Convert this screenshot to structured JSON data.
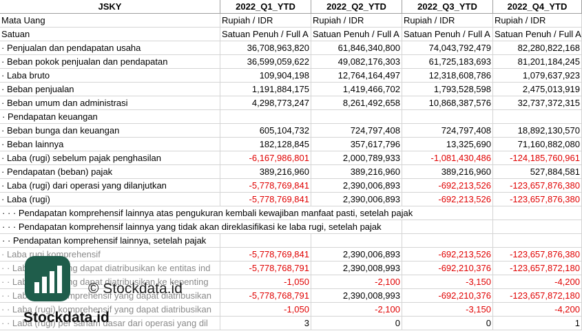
{
  "table": {
    "header": [
      "JSKY",
      "2022_Q1_YTD",
      "2022_Q2_YTD",
      "2022_Q3_YTD",
      "2022_Q4_YTD"
    ],
    "rows": [
      {
        "label": "Mata Uang",
        "values": [
          "Rupiah / IDR",
          "Rupiah / IDR",
          "Rupiah / IDR",
          "Rupiah / IDR"
        ]
      },
      {
        "label": "Satuan",
        "values": [
          "Satuan Penuh / Full A",
          "Satuan Penuh / Full A",
          "Satuan Penuh / Full A",
          "Satuan Penuh / Full A"
        ]
      },
      {
        "label": "· Penjualan dan pendapatan usaha",
        "values": [
          "36,708,963,820",
          "61,846,340,800",
          "74,043,792,479",
          "82,280,822,168"
        ]
      },
      {
        "label": "· Beban pokok penjualan dan pendapatan",
        "values": [
          "36,599,059,622",
          "49,082,176,303",
          "61,725,183,693",
          "81,201,184,245"
        ]
      },
      {
        "label": "· Laba bruto",
        "values": [
          "109,904,198",
          "12,764,164,497",
          "12,318,608,786",
          "1,079,637,923"
        ]
      },
      {
        "label": "· Beban penjualan",
        "values": [
          "1,191,884,175",
          "1,419,466,702",
          "1,793,528,598",
          "2,475,013,919"
        ]
      },
      {
        "label": "· Beban umum dan administrasi",
        "values": [
          "4,298,773,247",
          "8,261,492,658",
          "10,868,387,576",
          "32,737,372,315"
        ]
      },
      {
        "label": "· Pendapatan keuangan",
        "values": []
      },
      {
        "label": "· Beban bunga dan keuangan",
        "values": [
          "605,104,732",
          "724,797,408",
          "724,797,408",
          "18,892,130,570"
        ]
      },
      {
        "label": "· Beban lainnya",
        "values": [
          "182,128,845",
          "357,617,796",
          "13,325,690",
          "71,160,882,080"
        ]
      },
      {
        "label": "· Laba (rugi) sebelum pajak penghasilan",
        "values": [
          "-6,167,986,801",
          "2,000,789,933",
          "-1,081,430,486",
          "-124,185,760,961"
        ]
      },
      {
        "label": "· Pendapatan (beban) pajak",
        "values": [
          "389,216,960",
          "389,216,960",
          "389,216,960",
          "527,884,581"
        ]
      },
      {
        "label": "· Laba (rugi) dari operasi yang dilanjutkan",
        "values": [
          "-5,778,769,841",
          "2,390,006,893",
          "-692,213,526",
          "-123,657,876,380"
        ]
      },
      {
        "label": "· Laba (rugi)",
        "values": [
          "-5,778,769,841",
          "2,390,006,893",
          "-692,213,526",
          "-123,657,876,380"
        ]
      },
      {
        "label": "· · · Pendapatan komprehensif lainnya atas pengukuran kembali kewajiban manfaat pasti, setelah pajak",
        "values": []
      },
      {
        "label": "· · · Pendapatan komprehensif lainnya yang tidak akan direklasifikasi ke laba rugi, setelah pajak",
        "values": []
      },
      {
        "label": "· · Pendapatan komprehensif lainnya, setelah pajak",
        "values": []
      },
      {
        "label": "· Laba rugi komprehensif",
        "values": [
          "-5,778,769,841",
          "2,390,006,893",
          "-692,213,526",
          "-123,657,876,380"
        ]
      },
      {
        "label": "· · Laba (rugi) yang dapat diatribusikan ke entitas ind",
        "values": [
          "-5,778,768,791",
          "2,390,008,993",
          "-692,210,376",
          "-123,657,872,180"
        ]
      },
      {
        "label": "· · Laba (rugi) yang dapat diatribusikan ke kepenting",
        "values": [
          "-1,050",
          "-2,100",
          "-3,150",
          "-4,200"
        ]
      },
      {
        "label": "· · Laba (rugi) komprehensif yang dapat diatribusikan",
        "values": [
          "-5,778,768,791",
          "2,390,008,993",
          "-692,210,376",
          "-123,657,872,180"
        ]
      },
      {
        "label": "· · Laba (rugi) komprehensif yang dapat diatribusikan",
        "values": [
          "-1,050",
          "-2,100",
          "-3,150",
          "-4,200"
        ]
      },
      {
        "label": "· · Laba (rugi) per saham dasar dari operasi yang dil",
        "values": [
          "3",
          "0",
          "0",
          "1"
        ]
      }
    ]
  },
  "watermark": {
    "copyright": "© Stockdata.id",
    "brand": "Stockdata.id"
  }
}
